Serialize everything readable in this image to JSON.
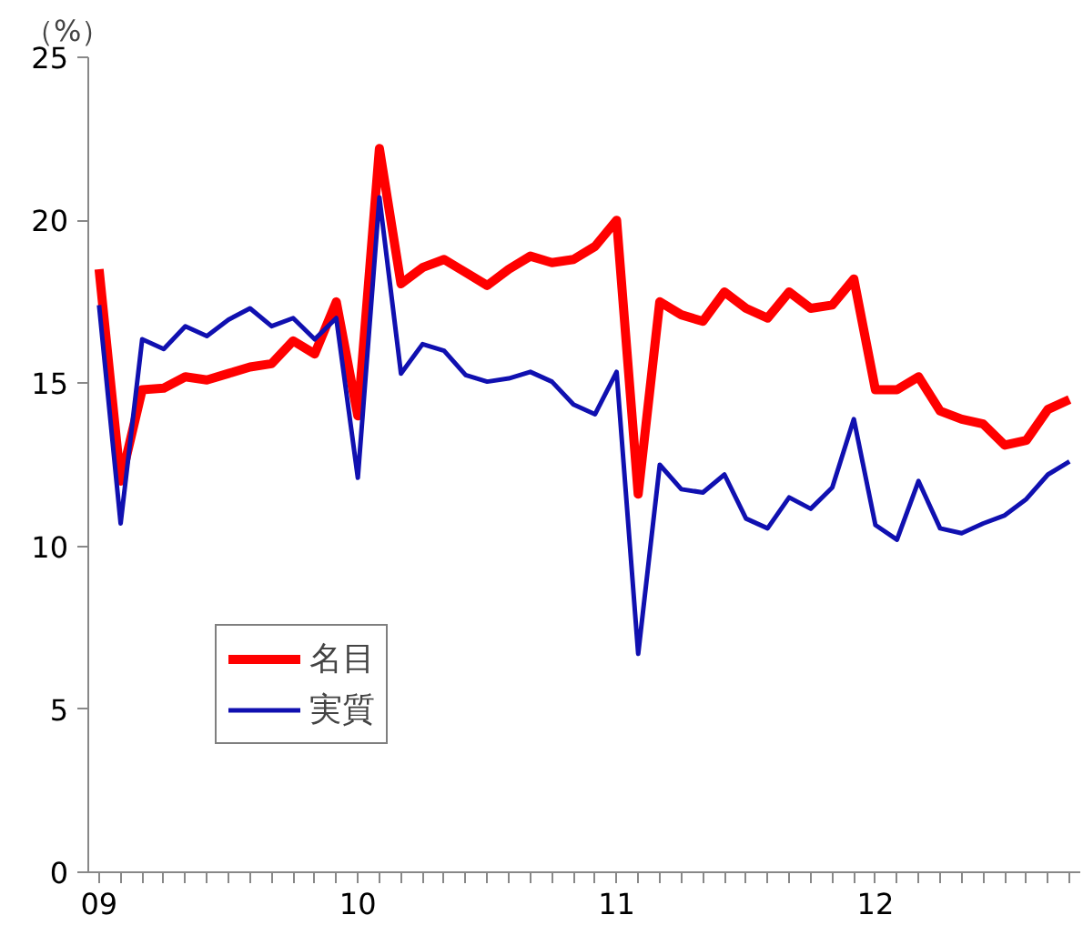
{
  "chart_data": {
    "type": "line",
    "ylabel": "（%）",
    "categories": [
      "09",
      null,
      null,
      null,
      null,
      null,
      null,
      null,
      null,
      null,
      null,
      null,
      "10",
      null,
      null,
      null,
      null,
      null,
      null,
      null,
      null,
      null,
      null,
      null,
      "11",
      null,
      null,
      null,
      null,
      null,
      null,
      null,
      null,
      null,
      null,
      null,
      "12",
      null,
      null,
      null,
      null,
      null,
      null,
      null,
      null,
      null
    ],
    "series": [
      {
        "name": "名目",
        "color": "#ff0000",
        "values": [
          18.5,
          12.0,
          14.8,
          14.85,
          15.2,
          15.1,
          15.3,
          15.5,
          15.6,
          16.3,
          15.9,
          17.5,
          14.0,
          22.2,
          18.05,
          18.55,
          18.8,
          18.4,
          18.0,
          18.5,
          18.9,
          18.7,
          18.8,
          19.2,
          20.0,
          11.6,
          17.5,
          17.1,
          16.9,
          17.8,
          17.3,
          17.0,
          17.8,
          17.3,
          17.4,
          18.2,
          14.8,
          14.8,
          15.2,
          14.15,
          13.9,
          13.75,
          13.1,
          13.25,
          14.2,
          14.5
        ]
      },
      {
        "name": "実質",
        "color": "#1010b0",
        "values": [
          17.4,
          10.7,
          16.35,
          16.05,
          16.75,
          16.45,
          16.95,
          17.3,
          16.75,
          17.0,
          16.35,
          17.0,
          12.1,
          20.7,
          15.3,
          16.2,
          16.0,
          15.25,
          15.05,
          15.15,
          15.35,
          15.05,
          14.35,
          14.05,
          15.35,
          6.7,
          12.5,
          11.75,
          11.65,
          12.2,
          10.85,
          10.55,
          11.5,
          11.15,
          11.8,
          13.9,
          10.65,
          10.2,
          12.0,
          10.55,
          10.4,
          10.7,
          10.95,
          11.45,
          12.2,
          12.6
        ]
      }
    ],
    "ylim": [
      0,
      25
    ],
    "yticks": [
      0,
      5,
      10,
      15,
      20,
      25
    ],
    "grid": false,
    "legend": "bottom left",
    "marker": "none",
    "line_style": "solid"
  }
}
